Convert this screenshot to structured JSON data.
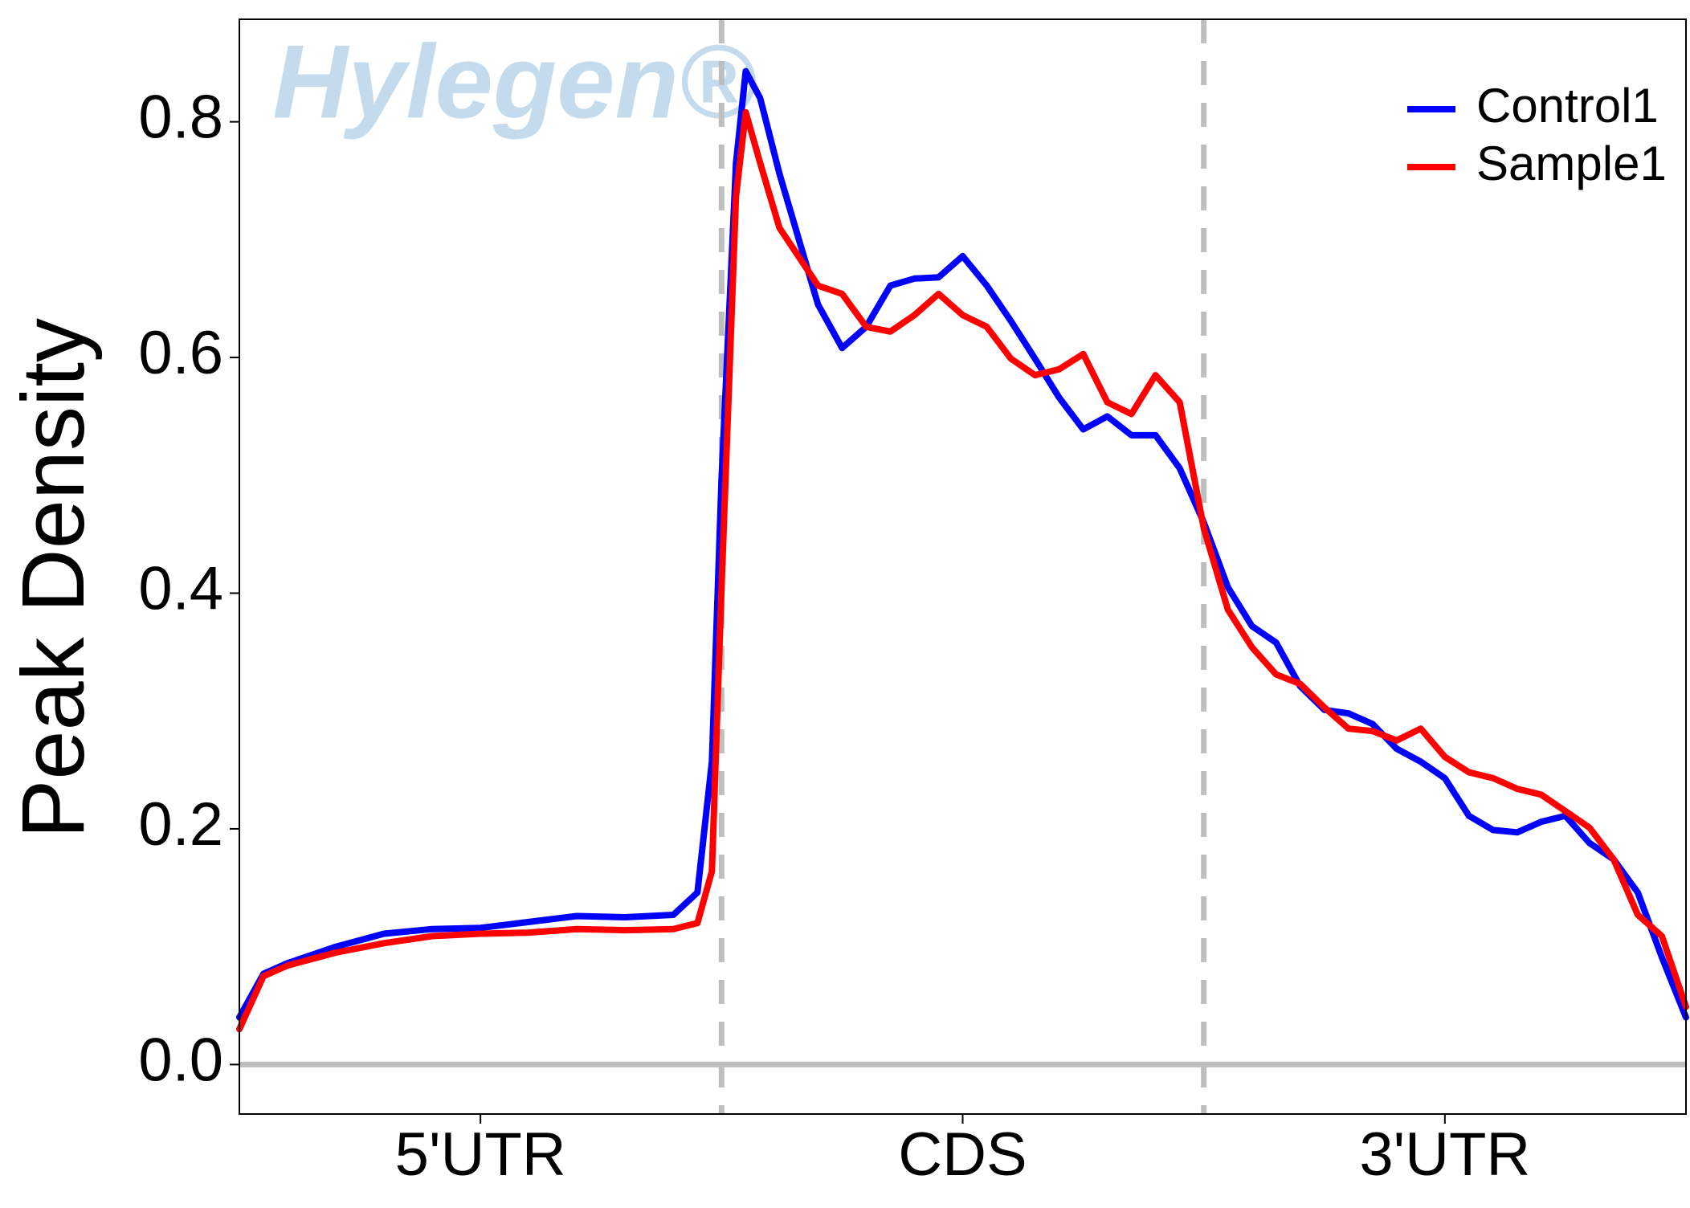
{
  "chart_data": {
    "type": "line",
    "ylabel": "Peak Density",
    "watermark": "Hylegen®",
    "xlim": [
      0,
      3
    ],
    "ylim": [
      -0.042,
      0.887
    ],
    "xticks": [
      {
        "value": 0.5,
        "label": "5'UTR"
      },
      {
        "value": 1.5,
        "label": "CDS"
      },
      {
        "value": 2.5,
        "label": "3'UTR"
      }
    ],
    "yticks": [
      {
        "value": 0,
        "label": "0.0"
      },
      0.2,
      0.4,
      0.6,
      0.8
    ],
    "vlines": [
      1,
      2
    ],
    "hline": 0,
    "legend": "top-right",
    "x": [
      0,
      0.05,
      0.1,
      0.2,
      0.3,
      0.4,
      0.5,
      0.6,
      0.7,
      0.8,
      0.9,
      0.95,
      0.98,
      1.0,
      1.03,
      1.05,
      1.08,
      1.12,
      1.2,
      1.25,
      1.3,
      1.35,
      1.4,
      1.45,
      1.5,
      1.55,
      1.6,
      1.65,
      1.7,
      1.75,
      1.8,
      1.85,
      1.9,
      1.95,
      2.0,
      2.05,
      2.1,
      2.15,
      2.2,
      2.25,
      2.3,
      2.35,
      2.4,
      2.45,
      2.5,
      2.55,
      2.6,
      2.65,
      2.7,
      2.75,
      2.8,
      2.85,
      2.9,
      2.95,
      3.0
    ],
    "series": [
      {
        "name": "Control1",
        "color": "#0000ff",
        "values": [
          0.04,
          0.077,
          0.086,
          0.1,
          0.111,
          0.115,
          0.116,
          0.121,
          0.126,
          0.125,
          0.127,
          0.146,
          0.257,
          0.497,
          0.765,
          0.843,
          0.82,
          0.756,
          0.645,
          0.608,
          0.626,
          0.661,
          0.667,
          0.668,
          0.686,
          0.661,
          0.631,
          0.599,
          0.566,
          0.539,
          0.55,
          0.534,
          0.534,
          0.506,
          0.46,
          0.405,
          0.372,
          0.358,
          0.321,
          0.301,
          0.298,
          0.289,
          0.268,
          0.257,
          0.243,
          0.211,
          0.199,
          0.197,
          0.206,
          0.211,
          0.188,
          0.174,
          0.146,
          0.091,
          0.04
        ]
      },
      {
        "name": "Sample1",
        "color": "#ff0000",
        "values": [
          0.03,
          0.075,
          0.084,
          0.095,
          0.103,
          0.109,
          0.111,
          0.112,
          0.115,
          0.114,
          0.115,
          0.12,
          0.164,
          0.405,
          0.737,
          0.808,
          0.765,
          0.71,
          0.661,
          0.654,
          0.626,
          0.622,
          0.636,
          0.654,
          0.636,
          0.626,
          0.599,
          0.585,
          0.59,
          0.603,
          0.562,
          0.552,
          0.585,
          0.562,
          0.455,
          0.386,
          0.354,
          0.331,
          0.323,
          0.303,
          0.285,
          0.283,
          0.275,
          0.285,
          0.261,
          0.248,
          0.243,
          0.234,
          0.229,
          0.215,
          0.201,
          0.174,
          0.127,
          0.109,
          0.049
        ]
      }
    ]
  }
}
